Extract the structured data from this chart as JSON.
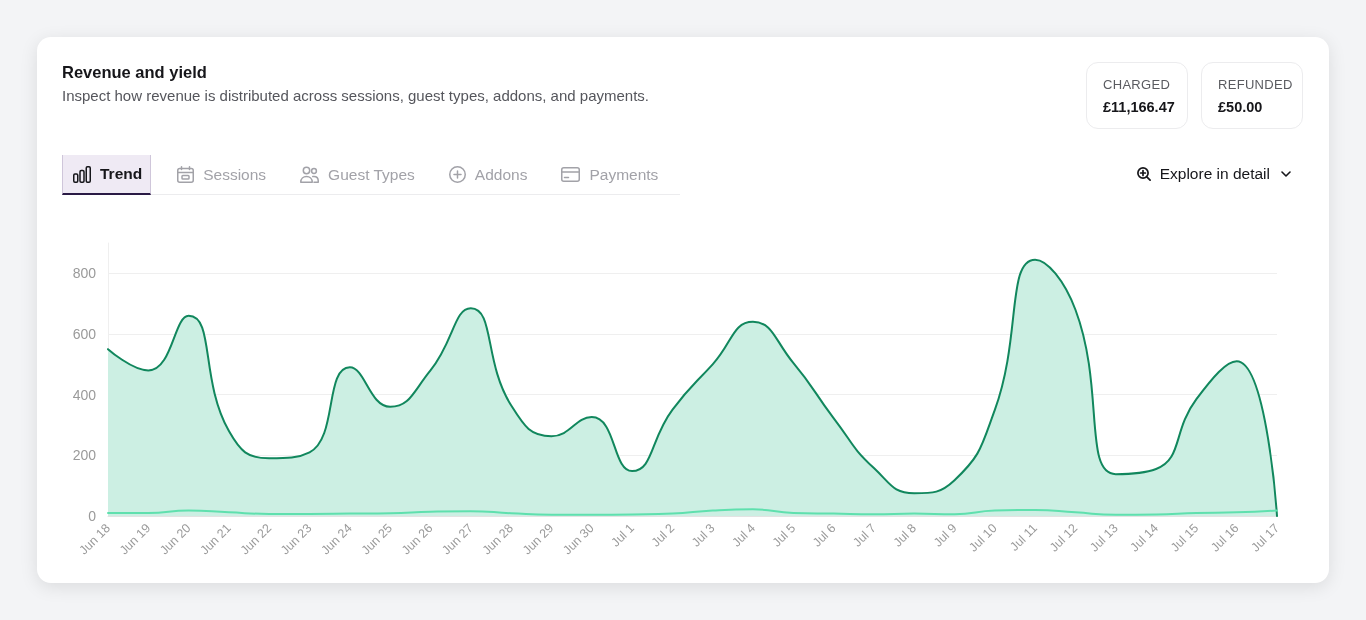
{
  "chart_data": {
    "type": "area",
    "title": "Revenue and yield",
    "subtitle": "Inspect how revenue is distributed across sessions, guest types, addons, and payments.",
    "categories": [
      "Jun 18",
      "Jun 19",
      "Jun 20",
      "Jun 21",
      "Jun 22",
      "Jun 23",
      "Jun 24",
      "Jun 25",
      "Jun 26",
      "Jun 27",
      "Jun 28",
      "Jun 29",
      "Jun 30",
      "Jul 1",
      "Jul 2",
      "Jul 3",
      "Jul 4",
      "Jul 5",
      "Jul 6",
      "Jul 7",
      "Jul 8",
      "Jul 9",
      "Jul 10",
      "Jul 11",
      "Jul 12",
      "Jul 13",
      "Jul 14",
      "Jul 15",
      "Jul 16",
      "Jul 17"
    ],
    "series": [
      {
        "color": "#11875d",
        "values": [
          550,
          480,
          660,
          280,
          190,
          210,
          490,
          360,
          480,
          685,
          365,
          263,
          326,
          148,
          350,
          500,
          640,
          505,
          323,
          158,
          75,
          118,
          350,
          845,
          680,
          138,
          155,
          385,
          510,
          0
        ]
      },
      {
        "type": "line",
        "color": "#5fe0ae",
        "values": [
          10,
          10,
          18,
          12,
          7,
          7,
          8,
          9,
          14,
          16,
          9,
          4,
          4,
          5,
          8,
          18,
          22,
          10,
          8,
          6,
          8,
          6,
          18,
          20,
          12,
          4,
          5,
          10,
          12,
          18
        ]
      }
    ],
    "ylim": [
      0,
      900
    ],
    "yticks": [
      0,
      200,
      400,
      600,
      800
    ],
    "grid": "y",
    "marker": "none",
    "annotations": [
      "CHARGED",
      "£11,166.47",
      "REFUNDED",
      "£50.00",
      "Trend",
      "Sessions",
      "Guest Types",
      "Addons",
      "Payments",
      "Explore in detail"
    ]
  }
}
